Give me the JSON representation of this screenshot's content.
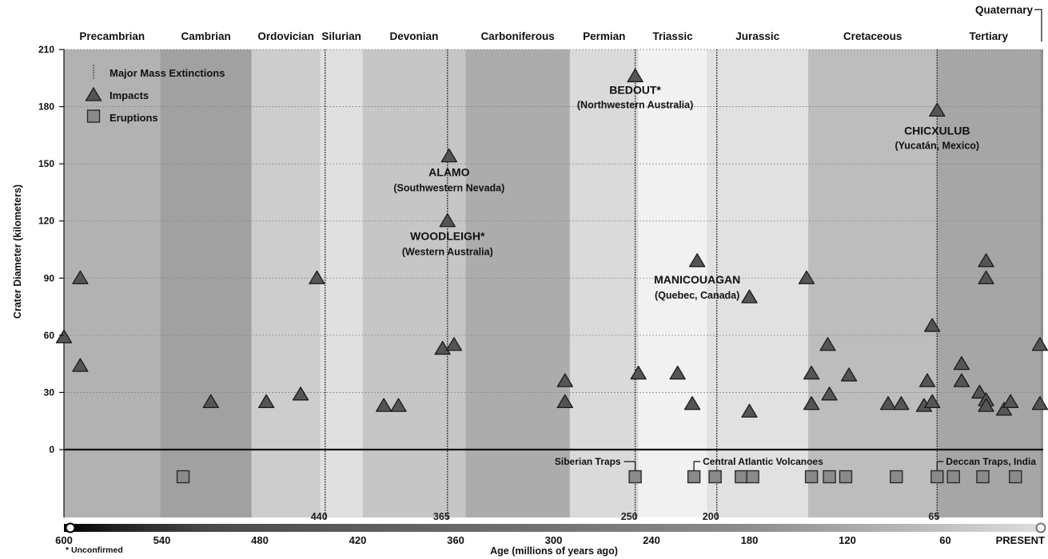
{
  "chart_data": {
    "type": "scatter",
    "xlabel": "Age (millions of years ago)",
    "ylabel": "Crater Diameter (kilometers)",
    "xlim": [
      600,
      0
    ],
    "ylim": [
      0,
      210
    ],
    "x_ticks": [
      {
        "v": 600,
        "label": "600"
      },
      {
        "v": 540,
        "label": "540"
      },
      {
        "v": 480,
        "label": "480"
      },
      {
        "v": 420,
        "label": "420"
      },
      {
        "v": 360,
        "label": "360"
      },
      {
        "v": 300,
        "label": "300"
      },
      {
        "v": 240,
        "label": "240"
      },
      {
        "v": 180,
        "label": "180"
      },
      {
        "v": 120,
        "label": "120"
      },
      {
        "v": 60,
        "label": "60"
      },
      {
        "v": 0,
        "label": "PRESENT"
      }
    ],
    "y_ticks": [
      0,
      30,
      60,
      90,
      120,
      150,
      180,
      210
    ],
    "grid": true,
    "legend_position": "top-left",
    "legend": {
      "extinctions": "Major Mass Extinctions",
      "impacts": "Impacts",
      "eruptions": "Eruptions"
    },
    "periods": [
      {
        "name": "Precambrian",
        "start": 600,
        "end": 541,
        "color": "#b2b2b2"
      },
      {
        "name": "Cambrian",
        "start": 541,
        "end": 485,
        "color": "#a1a1a1"
      },
      {
        "name": "Ordovician",
        "start": 485,
        "end": 443,
        "color": "#cdcdcd"
      },
      {
        "name": "Silurian",
        "start": 443,
        "end": 417,
        "color": "#e0e0e0"
      },
      {
        "name": "Devonian",
        "start": 417,
        "end": 354,
        "color": "#c6c6c6"
      },
      {
        "name": "Carboniferous",
        "start": 354,
        "end": 290,
        "color": "#acacac"
      },
      {
        "name": "Permian",
        "start": 290,
        "end": 248,
        "color": "#dadada"
      },
      {
        "name": "Triassic",
        "start": 248,
        "end": 206,
        "color": "#f1f1f1"
      },
      {
        "name": "Jurassic",
        "start": 206,
        "end": 144,
        "color": "#e1e1e1"
      },
      {
        "name": "Cretaceous",
        "start": 144,
        "end": 65,
        "color": "#bdbdbd"
      },
      {
        "name": "Tertiary",
        "start": 65,
        "end": 1.8,
        "color": "#a6a6a6"
      },
      {
        "name": "Quaternary",
        "start": 1.8,
        "end": 0,
        "color": "#8f8f8f"
      }
    ],
    "extinctions": [
      {
        "v": 440,
        "label": "440"
      },
      {
        "v": 365,
        "label": "365"
      },
      {
        "v": 250,
        "label": "250"
      },
      {
        "v": 200,
        "label": "200"
      },
      {
        "v": 65,
        "label": "65"
      }
    ],
    "impacts": [
      {
        "x": 600,
        "y": 59
      },
      {
        "x": 590,
        "y": 90
      },
      {
        "x": 590,
        "y": 44
      },
      {
        "x": 510,
        "y": 25
      },
      {
        "x": 476,
        "y": 25
      },
      {
        "x": 455,
        "y": 29
      },
      {
        "x": 445,
        "y": 90
      },
      {
        "x": 404,
        "y": 23
      },
      {
        "x": 395,
        "y": 23
      },
      {
        "x": 368,
        "y": 53
      },
      {
        "x": 365,
        "y": 120
      },
      {
        "x": 364,
        "y": 154
      },
      {
        "x": 361,
        "y": 55
      },
      {
        "x": 293,
        "y": 36
      },
      {
        "x": 293,
        "y": 25
      },
      {
        "x": 250,
        "y": 196
      },
      {
        "x": 248,
        "y": 40
      },
      {
        "x": 224,
        "y": 40
      },
      {
        "x": 215,
        "y": 24
      },
      {
        "x": 212,
        "y": 99
      },
      {
        "x": 180,
        "y": 80
      },
      {
        "x": 180,
        "y": 20
      },
      {
        "x": 145,
        "y": 90
      },
      {
        "x": 142,
        "y": 40
      },
      {
        "x": 142,
        "y": 24
      },
      {
        "x": 132,
        "y": 55
      },
      {
        "x": 131,
        "y": 29
      },
      {
        "x": 119,
        "y": 39
      },
      {
        "x": 95,
        "y": 24
      },
      {
        "x": 87,
        "y": 24
      },
      {
        "x": 73,
        "y": 23
      },
      {
        "x": 71,
        "y": 36
      },
      {
        "x": 68,
        "y": 25
      },
      {
        "x": 68,
        "y": 65
      },
      {
        "x": 65,
        "y": 178
      },
      {
        "x": 50,
        "y": 45
      },
      {
        "x": 50,
        "y": 36
      },
      {
        "x": 39,
        "y": 30
      },
      {
        "x": 35,
        "y": 99
      },
      {
        "x": 35,
        "y": 90
      },
      {
        "x": 35,
        "y": 26
      },
      {
        "x": 35,
        "y": 23
      },
      {
        "x": 24,
        "y": 21
      },
      {
        "x": 20,
        "y": 25
      },
      {
        "x": 2,
        "y": 55
      },
      {
        "x": 2,
        "y": 24
      }
    ],
    "eruptions": [
      {
        "x": 527
      },
      {
        "x": 250
      },
      {
        "x": 214
      },
      {
        "x": 201
      },
      {
        "x": 185
      },
      {
        "x": 178
      },
      {
        "x": 142
      },
      {
        "x": 131
      },
      {
        "x": 121
      },
      {
        "x": 90
      },
      {
        "x": 65
      },
      {
        "x": 55
      },
      {
        "x": 37
      },
      {
        "x": 17
      }
    ],
    "eruption_labels": [
      {
        "x": 250,
        "label": "Siberian Traps",
        "side": "left"
      },
      {
        "x": 214,
        "label": "Central Atlantic Volcanoes",
        "side": "right"
      },
      {
        "x": 65,
        "label": "Deccan Traps, India",
        "side": "right"
      }
    ],
    "annotations": [
      {
        "x": 250,
        "y": 196,
        "name": "BEDOUT*",
        "location": "(Northwestern Australia)",
        "dy_name": 22,
        "dy_loc": 40
      },
      {
        "x": 364,
        "y": 154,
        "name": "ALAMO",
        "location": "(Southwestern Nevada)",
        "dy_name": 25,
        "dy_loc": 44
      },
      {
        "x": 365,
        "y": 120,
        "name": "WOODLEIGH*",
        "location": "(Western Australia)",
        "dy_name": 24,
        "dy_loc": 43
      },
      {
        "x": 212,
        "y": 99,
        "name": "MANICOUAGAN",
        "location": "(Quebec, Canada)",
        "dy_name": 28,
        "dy_loc": 47
      },
      {
        "x": 65,
        "y": 178,
        "name": "CHICXULUB",
        "location": "(Yucatán, Mexico)",
        "dy_name": 30,
        "dy_loc": 48
      }
    ],
    "footnote": "* Unconfirmed"
  }
}
